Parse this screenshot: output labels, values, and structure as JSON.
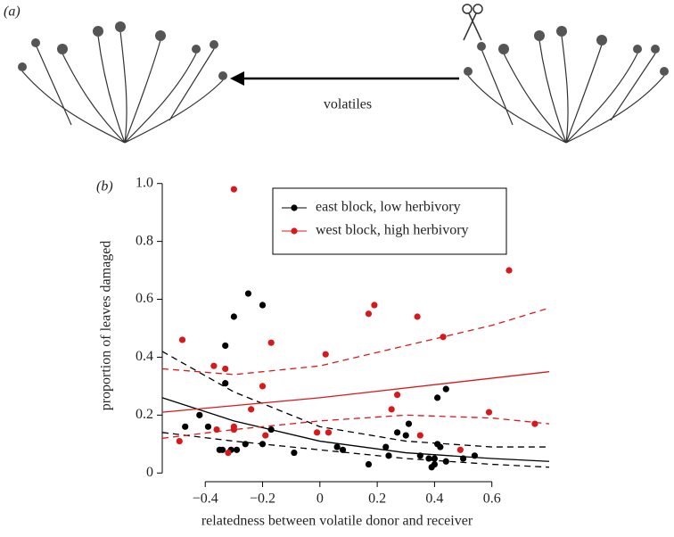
{
  "figure": {
    "panel_a_label": "(a)",
    "arrow_label": "volatiles",
    "panel_b_label": "(b)"
  },
  "chart_data": {
    "type": "scatter",
    "xlabel": "relatedness between volatile donor and receiver",
    "ylabel": "proportion of leaves damaged",
    "xlim": [
      -0.55,
      0.8
    ],
    "ylim": [
      -0.03,
      1.07
    ],
    "xticks": [
      {
        "value": -0.4,
        "label": "−0.4"
      },
      {
        "value": -0.2,
        "label": "−0.2"
      },
      0,
      0.2,
      0.4,
      0.6
    ],
    "yticks": [
      0,
      0.2,
      0.4,
      0.6,
      0.8,
      {
        "value": 1,
        "label": "1.0"
      }
    ],
    "legend": "top-right",
    "series": [
      {
        "name": "east block, low herbivory",
        "type": "scatter",
        "color": "#000000",
        "x": [
          -0.47,
          -0.42,
          -0.39,
          -0.35,
          -0.34,
          -0.33,
          -0.33,
          -0.31,
          -0.3,
          -0.29,
          -0.26,
          -0.25,
          -0.2,
          -0.2,
          -0.17,
          -0.09,
          0.06,
          0.08,
          0.17,
          0.23,
          0.24,
          0.27,
          0.3,
          0.31,
          0.35,
          0.38,
          0.39,
          0.4,
          0.4,
          0.41,
          0.41,
          0.42,
          0.44,
          0.44,
          0.5,
          0.54
        ],
        "values": [
          0.16,
          0.2,
          0.16,
          0.08,
          0.08,
          0.31,
          0.44,
          0.08,
          0.54,
          0.08,
          0.1,
          0.62,
          0.58,
          0.1,
          0.15,
          0.07,
          0.09,
          0.08,
          0.03,
          0.09,
          0.06,
          0.14,
          0.13,
          0.17,
          0.06,
          0.05,
          0.02,
          0.03,
          0.05,
          0.1,
          0.26,
          0.09,
          0.29,
          0.04,
          0.05,
          0.06
        ]
      },
      {
        "name": "west block, high herbivory",
        "type": "scatter",
        "color": "#d7191c",
        "x": [
          -0.49,
          -0.48,
          -0.37,
          -0.36,
          -0.33,
          -0.32,
          -0.3,
          -0.3,
          -0.3,
          -0.24,
          -0.2,
          -0.19,
          -0.17,
          -0.01,
          0.02,
          0.03,
          0.17,
          0.19,
          0.25,
          0.27,
          0.34,
          0.35,
          0.43,
          0.49,
          0.59,
          0.66,
          0.75
        ],
        "values": [
          0.11,
          0.46,
          0.37,
          0.15,
          0.36,
          0.07,
          0.98,
          0.15,
          0.16,
          0.22,
          0.3,
          0.13,
          0.45,
          0.14,
          0.41,
          0.14,
          0.55,
          0.58,
          0.22,
          0.27,
          0.54,
          0.13,
          0.47,
          0.08,
          0.21,
          0.7,
          0.17
        ]
      },
      {
        "type": "line",
        "color": "#000000",
        "dash": false,
        "x": [
          -0.55,
          -0.3,
          0,
          0.3,
          0.6,
          0.8
        ],
        "values": [
          0.26,
          0.18,
          0.11,
          0.07,
          0.05,
          0.04
        ]
      },
      {
        "type": "line",
        "color": "#000000",
        "dash": true,
        "x": [
          -0.55,
          -0.3,
          0,
          0.3,
          0.6,
          0.8
        ],
        "values": [
          0.42,
          0.28,
          0.16,
          0.11,
          0.09,
          0.09
        ]
      },
      {
        "type": "line",
        "color": "#000000",
        "dash": true,
        "x": [
          -0.55,
          -0.3,
          0,
          0.3,
          0.6,
          0.8
        ],
        "values": [
          0.14,
          0.11,
          0.08,
          0.05,
          0.03,
          0.02
        ]
      },
      {
        "type": "line",
        "color": "#d7191c",
        "dash": false,
        "x": [
          -0.55,
          0,
          0.8
        ],
        "values": [
          0.21,
          0.26,
          0.35
        ]
      },
      {
        "type": "line",
        "color": "#d7191c",
        "dash": true,
        "x": [
          -0.55,
          -0.3,
          0,
          0.3,
          0.6,
          0.8
        ],
        "values": [
          0.36,
          0.34,
          0.37,
          0.44,
          0.51,
          0.57
        ]
      },
      {
        "type": "line",
        "color": "#d7191c",
        "dash": true,
        "x": [
          -0.55,
          -0.3,
          0,
          0.3,
          0.6,
          0.8
        ],
        "values": [
          0.12,
          0.15,
          0.18,
          0.2,
          0.19,
          0.17
        ]
      }
    ]
  }
}
